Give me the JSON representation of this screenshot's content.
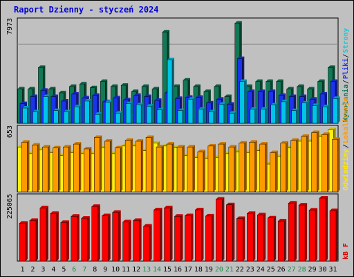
{
  "chart_data": {
    "type": "bar",
    "title": "Raport Dzienny -  styczeń  2024",
    "categories": [
      "1",
      "2",
      "3",
      "4",
      "5",
      "6",
      "7",
      "8",
      "9",
      "10",
      "11",
      "12",
      "13",
      "14",
      "15",
      "16",
      "17",
      "18",
      "19",
      "20",
      "21",
      "22",
      "23",
      "24",
      "25",
      "26",
      "27",
      "28",
      "29",
      "30",
      "31"
    ],
    "weekend_days": [
      "6",
      "7",
      "13",
      "14",
      "20",
      "21",
      "27",
      "28"
    ],
    "panels": [
      {
        "id": "requests",
        "ymax_label": "7973",
        "ymax": 7973,
        "grid_value": 5980,
        "legend": [
          {
            "text": "Wywołania",
            "color": "#0f7a5a"
          },
          {
            "text": "Pliki",
            "color": "#2233ee"
          },
          {
            "text": "Strony",
            "color": "#1ec8d8"
          }
        ],
        "series": [
          {
            "name": "Wywołania",
            "color": "#127855",
            "values": [
              2700,
              2700,
              4400,
              2700,
              2400,
              2900,
              3100,
              2800,
              3300,
              2900,
              3000,
              2500,
              2900,
              2700,
              7200,
              2900,
              3400,
              2900,
              2500,
              2900,
              2100,
              7900,
              2900,
              3300,
              3300,
              3300,
              2700,
              2900,
              2700,
              3300,
              4400
            ]
          },
          {
            "name": "Pliki",
            "color": "#1c33ee",
            "values": [
              1550,
              2100,
              2600,
              2100,
              1750,
              2300,
              2000,
              2200,
              1700,
              2000,
              1850,
              2200,
              2100,
              1800,
              2400,
              1950,
              2050,
              2050,
              1600,
              1900,
              1500,
              5100,
              2500,
              2500,
              2500,
              2200,
              2100,
              2100,
              1900,
              2300,
              3300
            ]
          },
          {
            "name": "Strony",
            "color": "#00c4e8",
            "values": [
              1200,
              900,
              2100,
              1000,
              900,
              1300,
              1750,
              700,
              1650,
              800,
              1550,
              1450,
              1350,
              1050,
              5000,
              1000,
              1900,
              1100,
              900,
              1500,
              800,
              3300,
              1100,
              1100,
              1450,
              1700,
              1000,
              1600,
              1400,
              1300,
              1950
            ]
          }
        ]
      },
      {
        "id": "visits",
        "ymax_label": "653",
        "ymax": 653,
        "legend": [
          {
            "text": "Odwiedziny",
            "color": "#ffe600"
          },
          {
            "text": "Lokalizacje",
            "color": "#ff9a00"
          }
        ],
        "series": [
          {
            "name": "Odwiedziny",
            "color": "#ffef10",
            "values": [
              470,
              400,
              440,
              410,
              380,
              410,
              400,
              400,
              460,
              400,
              480,
              480,
              430,
              510,
              480,
              460,
              380,
              360,
              350,
              360,
              400,
              420,
              410,
              430,
              290,
              370,
              460,
              530,
              530,
              580,
              650
            ]
          },
          {
            "name": "Lokalizacje",
            "color": "#ff9900",
            "values": [
              520,
              490,
              470,
              460,
              470,
              500,
              450,
              570,
              530,
              460,
              540,
              530,
              570,
              470,
              500,
              470,
              470,
              420,
              480,
              500,
              470,
              510,
              520,
              500,
              410,
              510,
              540,
              580,
              620,
              600,
              550
            ]
          }
        ]
      },
      {
        "id": "kbf",
        "ymax_label": "225065",
        "ymax": 225065,
        "legend": [
          {
            "text": "kB F",
            "color": "#dd0000"
          }
        ],
        "series": [
          {
            "name": "kB F",
            "color": "#ff0000",
            "values": [
              135000,
              145000,
              190000,
              170000,
              138000,
              160000,
              153000,
              195000,
              162000,
              174000,
              140000,
              145000,
              125000,
              183000,
              190000,
              160000,
              162000,
              183000,
              161000,
              221000,
              201000,
              152000,
              170000,
              165000,
              154000,
              143000,
              207000,
              200000,
              182000,
              225065,
              180000
            ]
          }
        ]
      }
    ]
  }
}
